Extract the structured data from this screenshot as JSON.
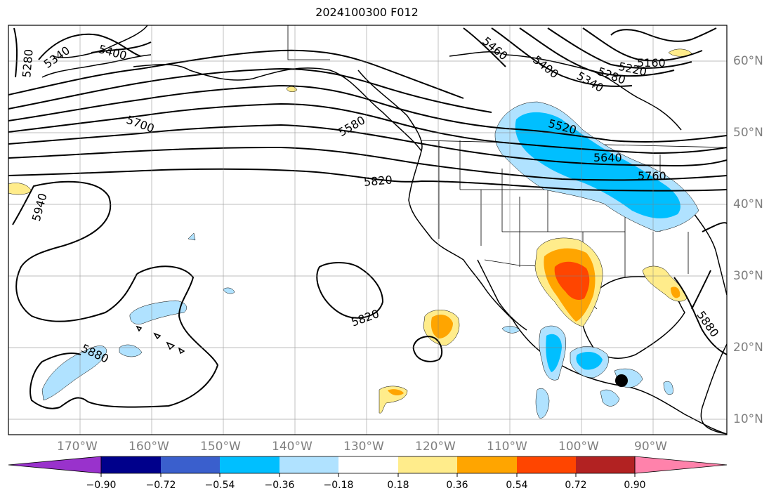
{
  "title": "2024100300 F012",
  "lat_labels": [
    "60°N",
    "50°N",
    "40°N",
    "30°N",
    "20°N",
    "10°N"
  ],
  "lon_labels": [
    "170°W",
    "160°W",
    "150°W",
    "140°W",
    "130°W",
    "120°W",
    "110°W",
    "100°W",
    "90°W"
  ],
  "contour_labels": [
    "5280",
    "5340",
    "5400",
    "5460",
    "5400",
    "5340",
    "5280",
    "5220",
    "5160",
    "5700",
    "5580",
    "5520",
    "5640",
    "5760",
    "5820",
    "5940",
    "5820",
    "5880",
    "5880"
  ],
  "colorbar": {
    "labels": [
      "−0.90",
      "−0.72",
      "−0.54",
      "−0.36",
      "−0.18",
      "0.18",
      "0.36",
      "0.54",
      "0.72",
      "0.90"
    ],
    "colors": [
      "#9932cc",
      "#00008b",
      "#3a5fcd",
      "#00bfff",
      "#b0e2ff",
      "#ffffff",
      "#ffec8b",
      "#ffa500",
      "#ff4500",
      "#b22222",
      "#ff82ab"
    ]
  }
}
